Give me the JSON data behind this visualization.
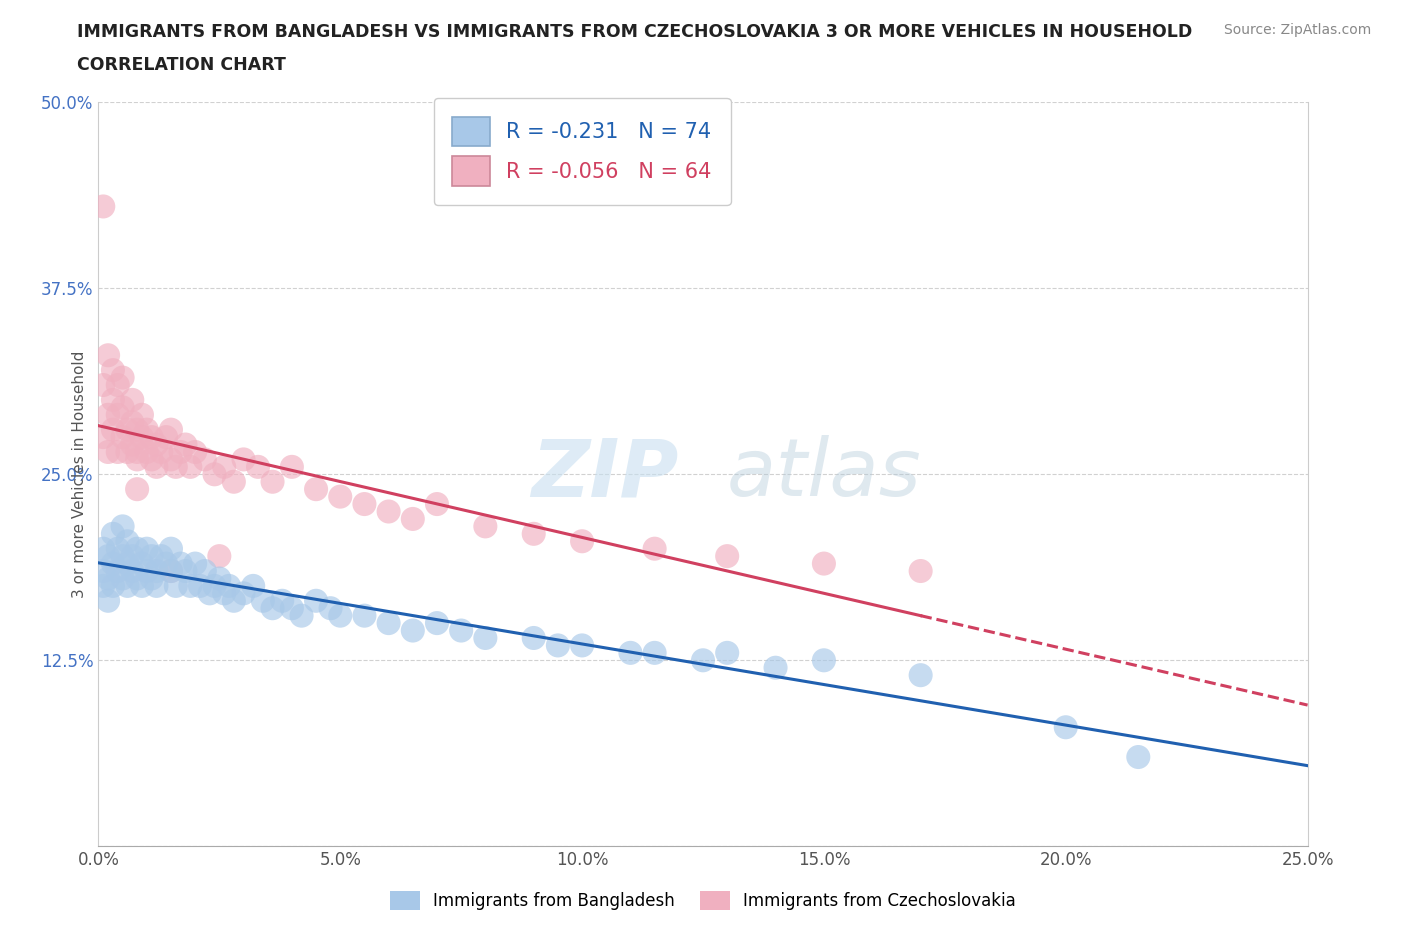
{
  "title_line1": "IMMIGRANTS FROM BANGLADESH VS IMMIGRANTS FROM CZECHOSLOVAKIA 3 OR MORE VEHICLES IN HOUSEHOLD",
  "title_line2": "CORRELATION CHART",
  "source": "Source: ZipAtlas.com",
  "ylabel": "3 or more Vehicles in Household",
  "xlim": [
    0.0,
    0.25
  ],
  "ylim": [
    0.0,
    0.5
  ],
  "xticks": [
    0.0,
    0.05,
    0.1,
    0.15,
    0.2,
    0.25
  ],
  "yticks": [
    0.0,
    0.125,
    0.25,
    0.375,
    0.5
  ],
  "xtick_labels": [
    "0.0%",
    "5.0%",
    "10.0%",
    "15.0%",
    "20.0%",
    "25.0%"
  ],
  "ytick_labels": [
    "",
    "12.5%",
    "25.0%",
    "37.5%",
    "50.0%"
  ],
  "color_bangladesh": "#a8c8e8",
  "color_czechoslovakia": "#f0b0c0",
  "line_color_bangladesh": "#2060b0",
  "line_color_czechoslovakia": "#d04060",
  "R_bangladesh": -0.231,
  "N_bangladesh": 74,
  "R_czechoslovakia": -0.056,
  "N_czechoslovakia": 64,
  "legend_label_bangladesh": "Immigrants from Bangladesh",
  "legend_label_czechoslovakia": "Immigrants from Czechoslovakia",
  "watermark_zip": "ZIP",
  "watermark_atlas": "atlas",
  "background_color": "#ffffff",
  "grid_color": "#cccccc",
  "scatter_bangladesh_x": [
    0.001,
    0.001,
    0.001,
    0.002,
    0.002,
    0.002,
    0.003,
    0.003,
    0.003,
    0.004,
    0.004,
    0.005,
    0.005,
    0.005,
    0.006,
    0.006,
    0.006,
    0.007,
    0.007,
    0.008,
    0.008,
    0.009,
    0.009,
    0.01,
    0.01,
    0.011,
    0.011,
    0.012,
    0.012,
    0.013,
    0.014,
    0.015,
    0.015,
    0.016,
    0.017,
    0.018,
    0.019,
    0.02,
    0.021,
    0.022,
    0.023,
    0.024,
    0.025,
    0.026,
    0.027,
    0.028,
    0.03,
    0.032,
    0.034,
    0.036,
    0.038,
    0.04,
    0.042,
    0.045,
    0.048,
    0.05,
    0.055,
    0.06,
    0.065,
    0.07,
    0.075,
    0.08,
    0.09,
    0.095,
    0.1,
    0.11,
    0.115,
    0.125,
    0.13,
    0.14,
    0.15,
    0.17,
    0.2,
    0.215
  ],
  "scatter_bangladesh_y": [
    0.185,
    0.175,
    0.2,
    0.195,
    0.18,
    0.165,
    0.21,
    0.19,
    0.175,
    0.2,
    0.185,
    0.195,
    0.18,
    0.215,
    0.19,
    0.175,
    0.205,
    0.185,
    0.195,
    0.18,
    0.2,
    0.175,
    0.19,
    0.185,
    0.2,
    0.18,
    0.195,
    0.175,
    0.185,
    0.195,
    0.19,
    0.185,
    0.2,
    0.175,
    0.19,
    0.185,
    0.175,
    0.19,
    0.175,
    0.185,
    0.17,
    0.175,
    0.18,
    0.17,
    0.175,
    0.165,
    0.17,
    0.175,
    0.165,
    0.16,
    0.165,
    0.16,
    0.155,
    0.165,
    0.16,
    0.155,
    0.155,
    0.15,
    0.145,
    0.15,
    0.145,
    0.14,
    0.14,
    0.135,
    0.135,
    0.13,
    0.13,
    0.125,
    0.13,
    0.12,
    0.125,
    0.115,
    0.08,
    0.06
  ],
  "scatter_czechoslovakia_x": [
    0.001,
    0.001,
    0.001,
    0.002,
    0.002,
    0.002,
    0.003,
    0.003,
    0.003,
    0.004,
    0.004,
    0.004,
    0.005,
    0.005,
    0.005,
    0.006,
    0.006,
    0.007,
    0.007,
    0.007,
    0.008,
    0.008,
    0.008,
    0.009,
    0.009,
    0.01,
    0.01,
    0.011,
    0.011,
    0.012,
    0.012,
    0.013,
    0.014,
    0.015,
    0.015,
    0.016,
    0.017,
    0.018,
    0.019,
    0.02,
    0.022,
    0.024,
    0.026,
    0.028,
    0.03,
    0.033,
    0.036,
    0.04,
    0.045,
    0.05,
    0.055,
    0.06,
    0.07,
    0.08,
    0.09,
    0.1,
    0.115,
    0.13,
    0.15,
    0.17,
    0.065,
    0.025,
    0.015,
    0.008
  ],
  "scatter_czechoslovakia_y": [
    0.43,
    0.275,
    0.31,
    0.29,
    0.33,
    0.265,
    0.3,
    0.32,
    0.28,
    0.31,
    0.265,
    0.29,
    0.295,
    0.275,
    0.315,
    0.28,
    0.265,
    0.285,
    0.27,
    0.3,
    0.265,
    0.28,
    0.26,
    0.275,
    0.29,
    0.265,
    0.28,
    0.26,
    0.275,
    0.255,
    0.27,
    0.265,
    0.275,
    0.26,
    0.28,
    0.255,
    0.265,
    0.27,
    0.255,
    0.265,
    0.26,
    0.25,
    0.255,
    0.245,
    0.26,
    0.255,
    0.245,
    0.255,
    0.24,
    0.235,
    0.23,
    0.225,
    0.23,
    0.215,
    0.21,
    0.205,
    0.2,
    0.195,
    0.19,
    0.185,
    0.22,
    0.195,
    0.185,
    0.24
  ]
}
